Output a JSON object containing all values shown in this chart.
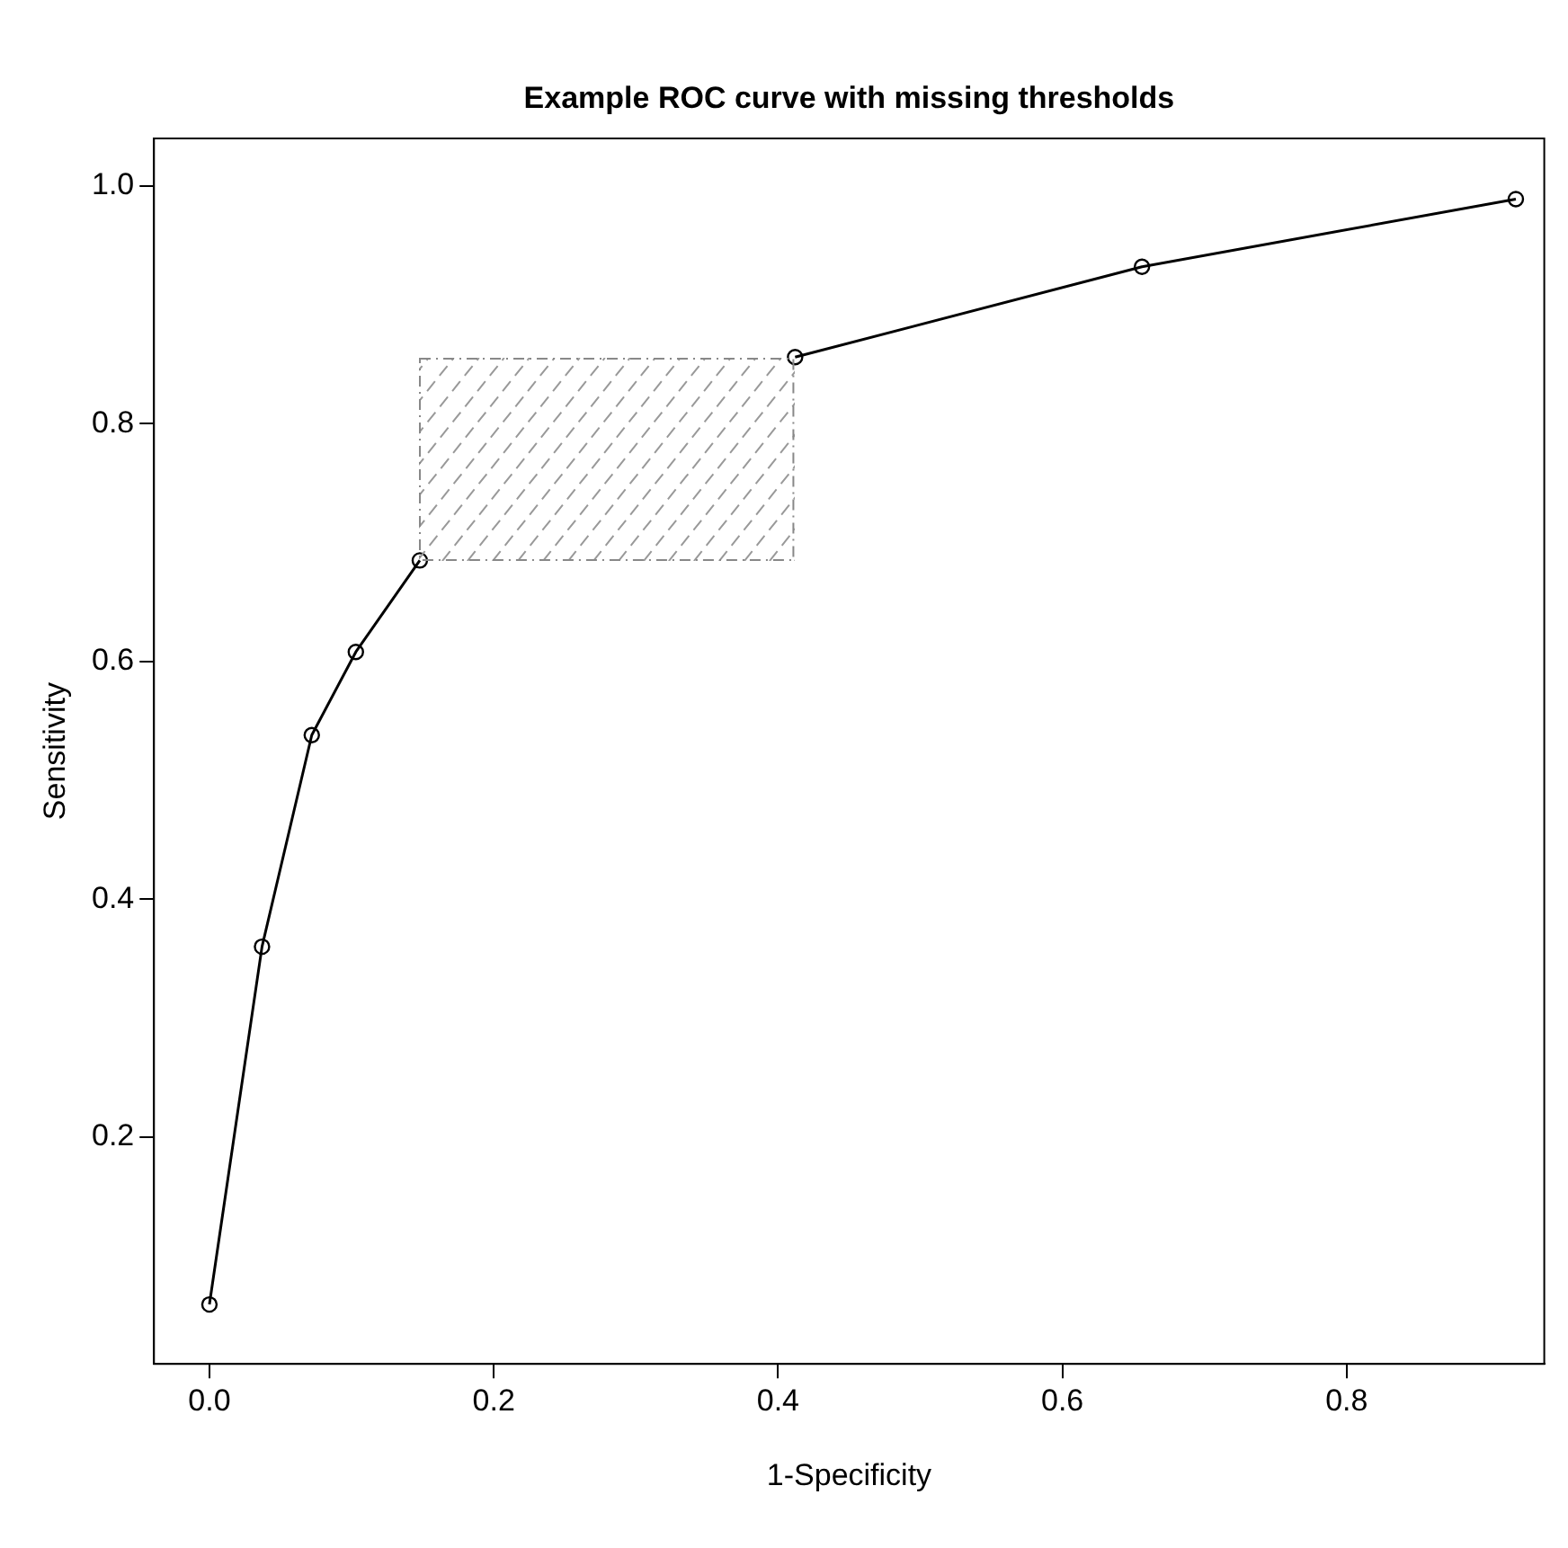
{
  "chart_data": {
    "type": "line",
    "title": "Example ROC curve with missing thresholds",
    "xlabel": "1-Specificity",
    "ylabel": "Sensitivity",
    "series": [
      {
        "color": "#000000",
        "x": [
          0,
          0.037,
          0.072,
          0.103,
          0.148
        ],
        "values": [
          0.059,
          0.36,
          0.538,
          0.608,
          0.685
        ]
      },
      {
        "color": "#000000",
        "x": [
          0.412,
          0.656,
          0.919
        ],
        "values": [
          0.856,
          0.932,
          0.989
        ]
      }
    ],
    "marker": "circle",
    "line_style": "solid",
    "grid": false,
    "legend": false,
    "xlim": [
      -0.039,
      0.939
    ],
    "ylim": [
      0.009,
      1.04
    ],
    "xticks": [
      {
        "value": 0,
        "label": "0.0"
      },
      0.2,
      0.4,
      0.6,
      0.8
    ],
    "yticks": [
      0.2,
      0.4,
      0.6,
      0.8,
      {
        "value": 1,
        "label": "1.0"
      }
    ]
  }
}
